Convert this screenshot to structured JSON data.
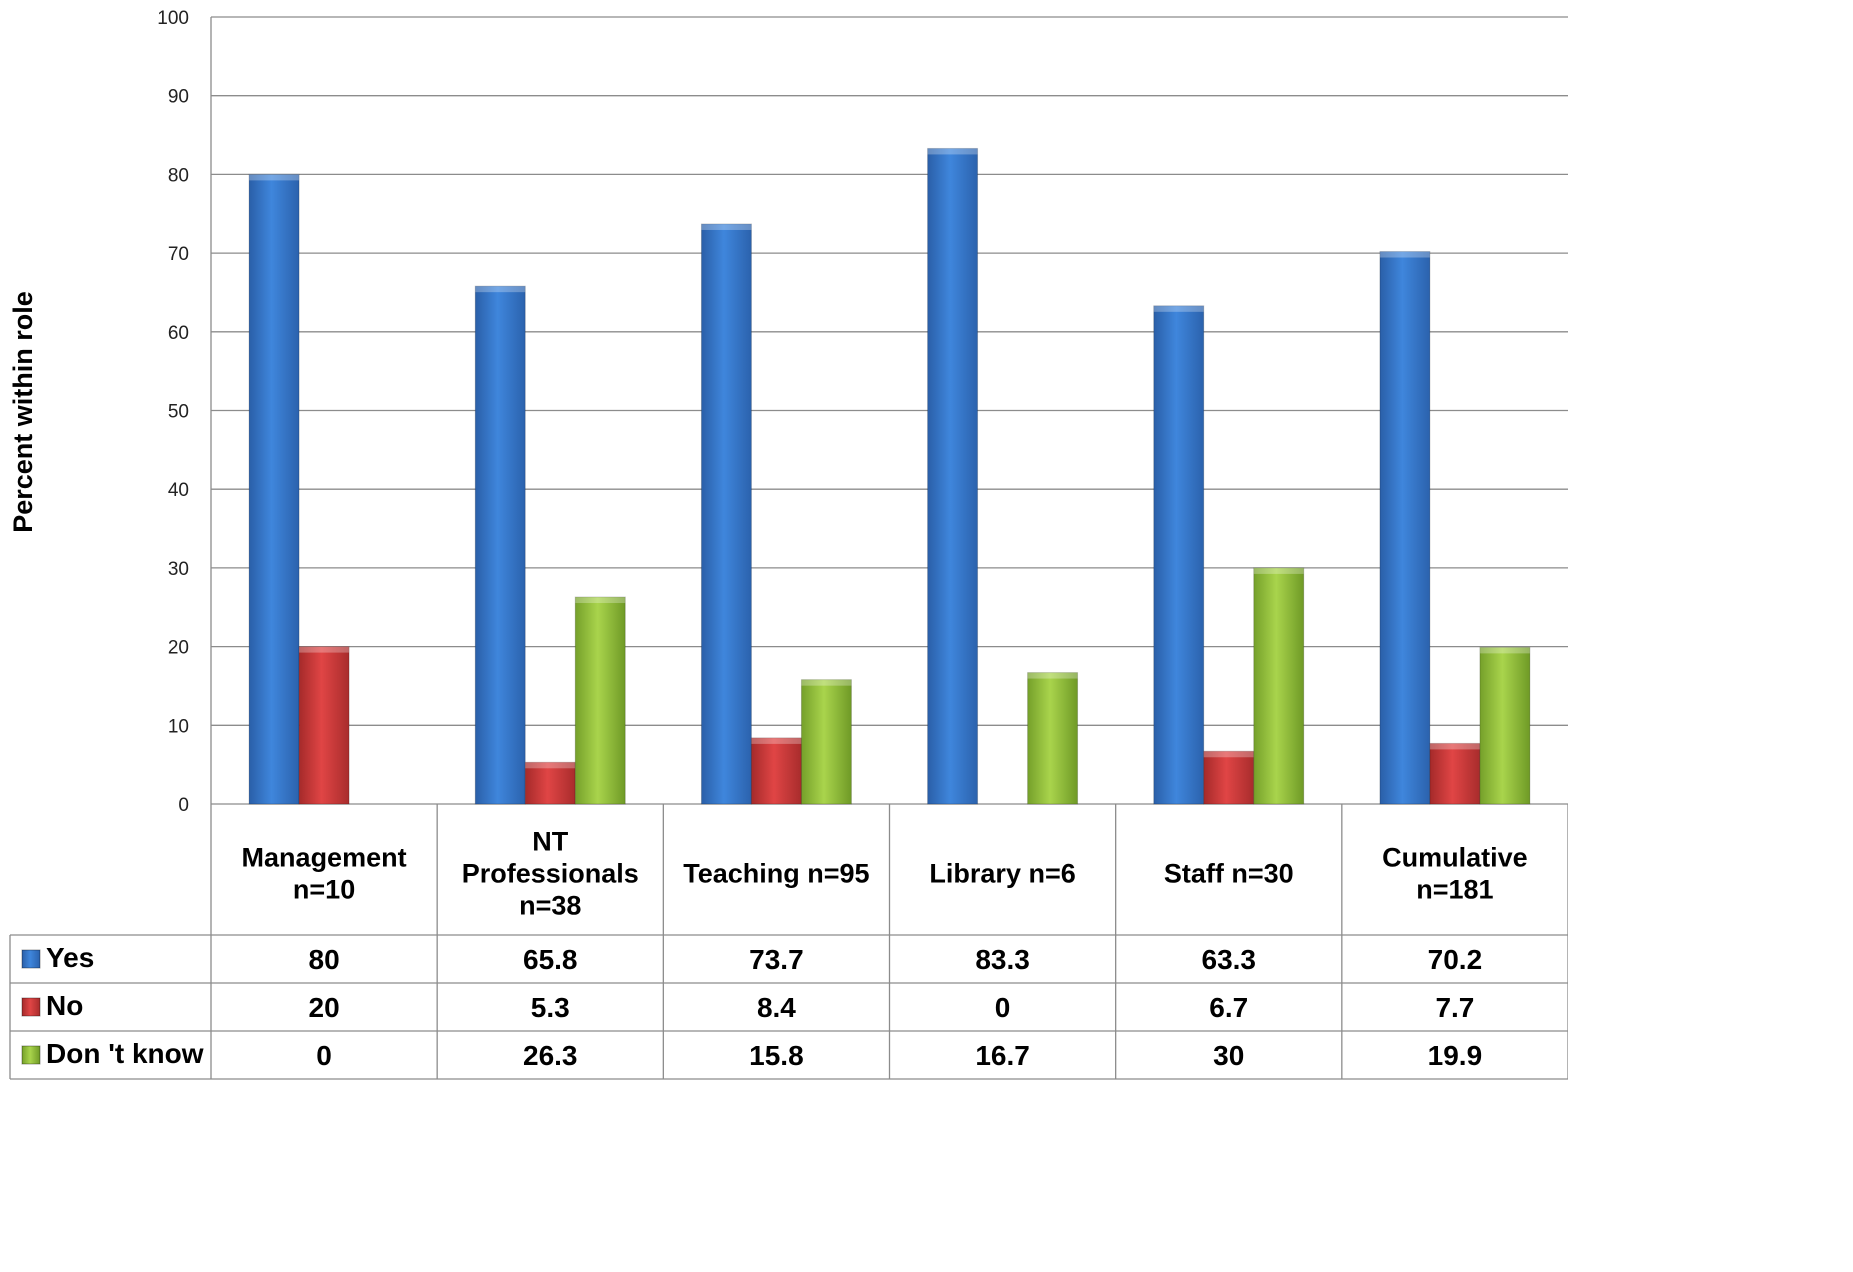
{
  "chart_data": {
    "type": "bar",
    "ylabel": "Percent within role",
    "ylim": [
      0,
      100
    ],
    "yticks": [
      0,
      10,
      20,
      30,
      40,
      50,
      60,
      70,
      80,
      90,
      100
    ],
    "grid": true,
    "categories": [
      [
        "Management",
        "n=10"
      ],
      [
        "NT",
        "Professionals",
        "n=38"
      ],
      [
        "Teaching n=95"
      ],
      [
        "Library n=6"
      ],
      [
        "Staff n=30"
      ],
      [
        "Cumulative",
        "n=181"
      ]
    ],
    "series": [
      {
        "name": "Yes",
        "color": "#3c7dd3",
        "values": [
          80,
          65.8,
          73.7,
          83.3,
          63.3,
          70.2
        ]
      },
      {
        "name": "No",
        "color": "#d13b3b",
        "values": [
          20,
          5.3,
          8.4,
          0,
          6.7,
          7.7
        ]
      },
      {
        "name": "Don 't know",
        "color": "#9bc53d",
        "values": [
          0,
          26.3,
          15.8,
          16.7,
          30,
          19.9
        ]
      }
    ]
  }
}
